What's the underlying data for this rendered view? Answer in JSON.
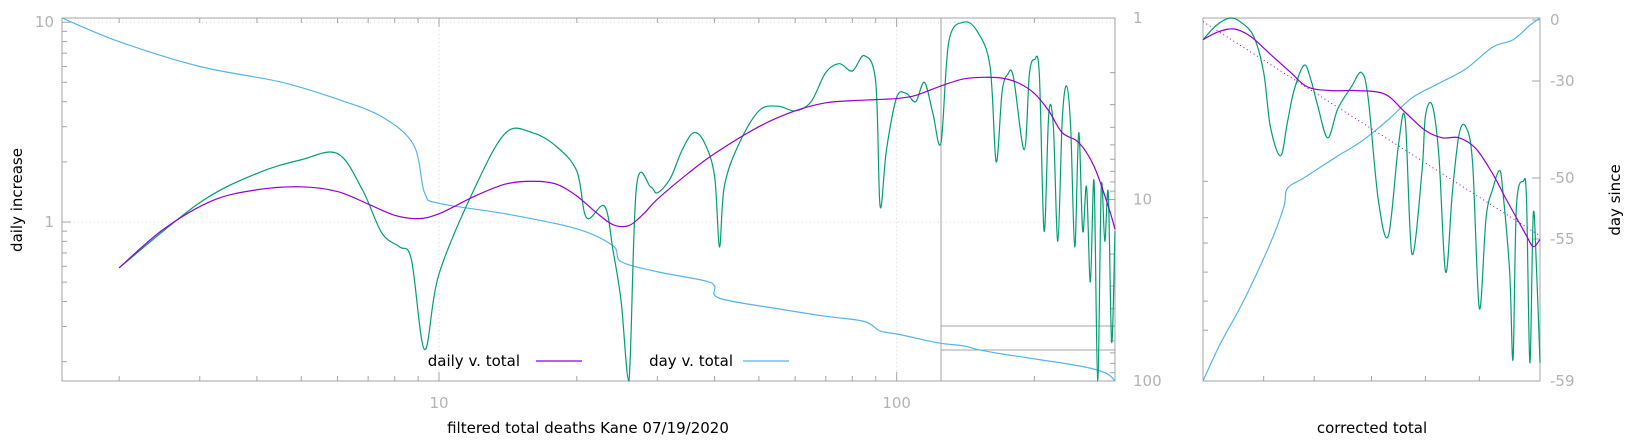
{
  "colors": {
    "daily": "#9400d3",
    "day": "#56b4e9",
    "raw": "#009e73",
    "tick_text": "#b3b3b3",
    "frame": "#a6a6a6",
    "grid": "#d4d4d4"
  },
  "chart_data": [
    {
      "type": "line",
      "xlabel": "filtered total deaths Kane 07/19/2020",
      "ylabel": "daily increase",
      "x_scale": "log",
      "y_scale": "log",
      "y2_scale": "log",
      "y2_reversed": true,
      "xlim": [
        1.5,
        300
      ],
      "ylim": [
        0.16,
        10.5
      ],
      "y2lim": [
        1,
        100
      ],
      "x_ticks": [
        {
          "v": 10,
          "label": "10"
        },
        {
          "v": 100,
          "label": "100"
        }
      ],
      "y_ticks": [
        {
          "v": 1,
          "label": "1"
        },
        {
          "v": 10,
          "label": "10"
        }
      ],
      "y2_ticks": [
        {
          "v": 1,
          "label": "1"
        },
        {
          "v": 10,
          "label": "10"
        },
        {
          "v": 100,
          "label": "100"
        }
      ],
      "grid": true,
      "legend": [
        {
          "label": "daily v. total",
          "series": "daily"
        },
        {
          "label": "day v. total",
          "series": "day"
        }
      ],
      "legend_position": "bottom-center",
      "inset_x": 125,
      "series": [
        {
          "key": "daily",
          "name": "daily v. total",
          "axis": "y",
          "x": [
            2.0,
            2.5,
            3.2,
            4.0,
            5.0,
            6.0,
            7.0,
            8.0,
            9.0,
            10.0,
            12.0,
            14.0,
            16.0,
            18.0,
            20.0,
            22.0,
            24.0,
            26.0,
            28.0,
            30.0,
            35.0,
            40.0,
            50.0,
            60.0,
            70.0,
            80.0,
            90.0,
            100.0,
            110.0,
            125.0,
            140.0,
            155.0,
            170.0,
            185.0,
            200.0,
            215.0,
            230.0,
            250.0,
            270.0,
            290.0,
            300.0
          ],
          "y": [
            0.59,
            0.92,
            1.28,
            1.45,
            1.5,
            1.42,
            1.23,
            1.08,
            1.04,
            1.1,
            1.35,
            1.55,
            1.6,
            1.55,
            1.35,
            1.12,
            0.97,
            0.96,
            1.1,
            1.3,
            1.75,
            2.2,
            3.0,
            3.6,
            3.95,
            4.05,
            4.1,
            4.15,
            4.3,
            4.8,
            5.2,
            5.3,
            5.25,
            4.95,
            4.4,
            3.6,
            2.8,
            2.5,
            1.9,
            1.2,
            0.92
          ]
        },
        {
          "key": "day",
          "name": "day v. total",
          "axis": "y2",
          "x": [
            1.5,
            2.0,
            3.0,
            4.5,
            6.0,
            7.5,
            8.8,
            9.3,
            10.0,
            14.0,
            20.0,
            24.0,
            25.0,
            30.0,
            38.0,
            40.0,
            41.0,
            55.0,
            70.0,
            85.0,
            92.0,
            100.0,
            110.0,
            125.0,
            140.0,
            150.0,
            170.0,
            190.0,
            210.0,
            240.0,
            270.0,
            290.0,
            300.0
          ],
          "y": [
            1.0,
            1.35,
            1.85,
            2.25,
            2.8,
            3.5,
            5.0,
            9.2,
            10.5,
            12.0,
            14.5,
            18.0,
            22.0,
            25.0,
            28.0,
            30.0,
            35.0,
            40.0,
            44.0,
            47.0,
            53.0,
            55.0,
            58.0,
            62.0,
            64.0,
            67.0,
            71.0,
            74.0,
            77.0,
            81.0,
            86.0,
            92.0,
            100.0
          ]
        },
        {
          "key": "raw",
          "name": "",
          "axis": "y",
          "x": [
            2.0,
            3.0,
            4.0,
            5.0,
            6.0,
            6.8,
            7.5,
            8.2,
            8.7,
            9.3,
            10.0,
            12.0,
            14.0,
            16.0,
            18.0,
            20.0,
            21.0,
            23.0,
            24.0,
            25.0,
            26.0,
            27.0,
            29.0,
            30.0,
            32.0,
            34.0,
            36.0,
            38.0,
            40.0,
            41.0,
            42.0,
            45.0,
            50.0,
            55.0,
            60.0,
            65.0,
            70.0,
            75.0,
            80.0,
            85.0,
            90.0,
            92.0,
            95.0,
            100.0,
            105.0,
            110.0,
            115.0,
            120.0,
            125.0,
            130.0,
            140.0,
            150.0,
            160.0,
            165.0,
            170.0,
            175.0,
            180.0,
            190.0,
            195.0,
            200.0,
            205.0,
            210.0,
            215.0,
            220.0,
            225.0,
            230.0,
            235.0,
            240.0,
            245.0,
            250.0,
            255.0,
            260.0,
            265.0,
            270.0,
            275.0,
            280.0,
            285.0,
            290.0,
            295.0,
            300.0
          ],
          "y": [
            0.59,
            1.25,
            1.75,
            2.05,
            2.2,
            1.45,
            0.88,
            0.75,
            0.65,
            0.23,
            0.55,
            1.5,
            2.8,
            2.8,
            2.4,
            1.8,
            1.05,
            1.2,
            0.72,
            0.4,
            0.05,
            1.5,
            1.5,
            1.4,
            1.65,
            2.3,
            2.8,
            2.5,
            1.7,
            0.75,
            1.5,
            2.4,
            3.6,
            3.8,
            3.6,
            4.0,
            5.6,
            6.2,
            5.7,
            6.8,
            5.0,
            1.2,
            2.3,
            4.2,
            4.4,
            4.0,
            5.0,
            3.5,
            2.5,
            8.0,
            10.0,
            9.0,
            6.0,
            2.0,
            4.5,
            5.5,
            5.3,
            2.3,
            5.5,
            6.5,
            5.5,
            0.9,
            3.5,
            3.0,
            0.8,
            3.2,
            4.8,
            3.0,
            0.75,
            2.8,
            0.9,
            1.5,
            0.5,
            1.6,
            0.05,
            1.5,
            0.8,
            1.4,
            0.25,
            0.9
          ]
        }
      ]
    },
    {
      "type": "line",
      "xlabel": "corrected total",
      "ylabel": "day since",
      "x_range": [
        0,
        1
      ],
      "y2_ticks": [
        {
          "v": 0,
          "label": "0"
        },
        {
          "v": -30,
          "label": "-30"
        },
        {
          "v": -50,
          "label": "-50"
        },
        {
          "v": -55,
          "label": "-55"
        },
        {
          "v": -59,
          "label": "-59"
        }
      ],
      "series": [
        {
          "key": "daily",
          "name": "",
          "axis": "y",
          "x": [
            0.0,
            0.04,
            0.09,
            0.14,
            0.2,
            0.26,
            0.31,
            0.38,
            0.46,
            0.54,
            0.6,
            0.66,
            0.71,
            0.76,
            0.81,
            0.86,
            0.9,
            0.93,
            0.96,
            0.98,
            1.0
          ],
          "y": [
            0.94,
            0.96,
            0.97,
            0.95,
            0.9,
            0.85,
            0.81,
            0.8,
            0.8,
            0.79,
            0.74,
            0.69,
            0.67,
            0.67,
            0.64,
            0.57,
            0.5,
            0.45,
            0.4,
            0.37,
            0.39
          ]
        },
        {
          "key": "raw",
          "name": "",
          "axis": "y",
          "x": [
            0.0,
            0.04,
            0.08,
            0.11,
            0.15,
            0.18,
            0.2,
            0.23,
            0.25,
            0.27,
            0.3,
            0.32,
            0.34,
            0.37,
            0.4,
            0.44,
            0.47,
            0.49,
            0.52,
            0.55,
            0.58,
            0.6,
            0.62,
            0.65,
            0.66,
            0.68,
            0.7,
            0.72,
            0.74,
            0.76,
            0.78,
            0.8,
            0.82,
            0.84,
            0.86,
            0.88,
            0.89,
            0.91,
            0.92,
            0.93,
            0.95,
            0.96,
            0.97,
            0.98,
            0.99,
            1.0
          ],
          "y": [
            0.94,
            0.98,
            1.0,
            0.99,
            0.95,
            0.85,
            0.7,
            0.62,
            0.71,
            0.8,
            0.87,
            0.83,
            0.76,
            0.67,
            0.75,
            0.81,
            0.85,
            0.78,
            0.5,
            0.4,
            0.65,
            0.72,
            0.35,
            0.58,
            0.73,
            0.76,
            0.62,
            0.3,
            0.52,
            0.68,
            0.7,
            0.6,
            0.2,
            0.45,
            0.53,
            0.58,
            0.52,
            0.3,
            0.06,
            0.48,
            0.55,
            0.5,
            0.05,
            0.46,
            0.3,
            0.05
          ]
        },
        {
          "key": "day",
          "name": "",
          "axis": "y2",
          "x": [
            0.0,
            0.05,
            0.12,
            0.2,
            0.24,
            0.25,
            0.3,
            0.4,
            0.47,
            0.55,
            0.62,
            0.7,
            0.78,
            0.86,
            0.92,
            0.97,
            1.0
          ],
          "y": [
            0.0,
            0.1,
            0.22,
            0.38,
            0.48,
            0.53,
            0.56,
            0.62,
            0.66,
            0.72,
            0.78,
            0.82,
            0.86,
            0.92,
            0.94,
            0.98,
            1.0
          ]
        },
        {
          "key": "fit",
          "name": "",
          "axis": "y",
          "dotted": true,
          "x": [
            0.0,
            1.0
          ],
          "y": [
            0.99,
            0.4
          ]
        }
      ]
    }
  ]
}
